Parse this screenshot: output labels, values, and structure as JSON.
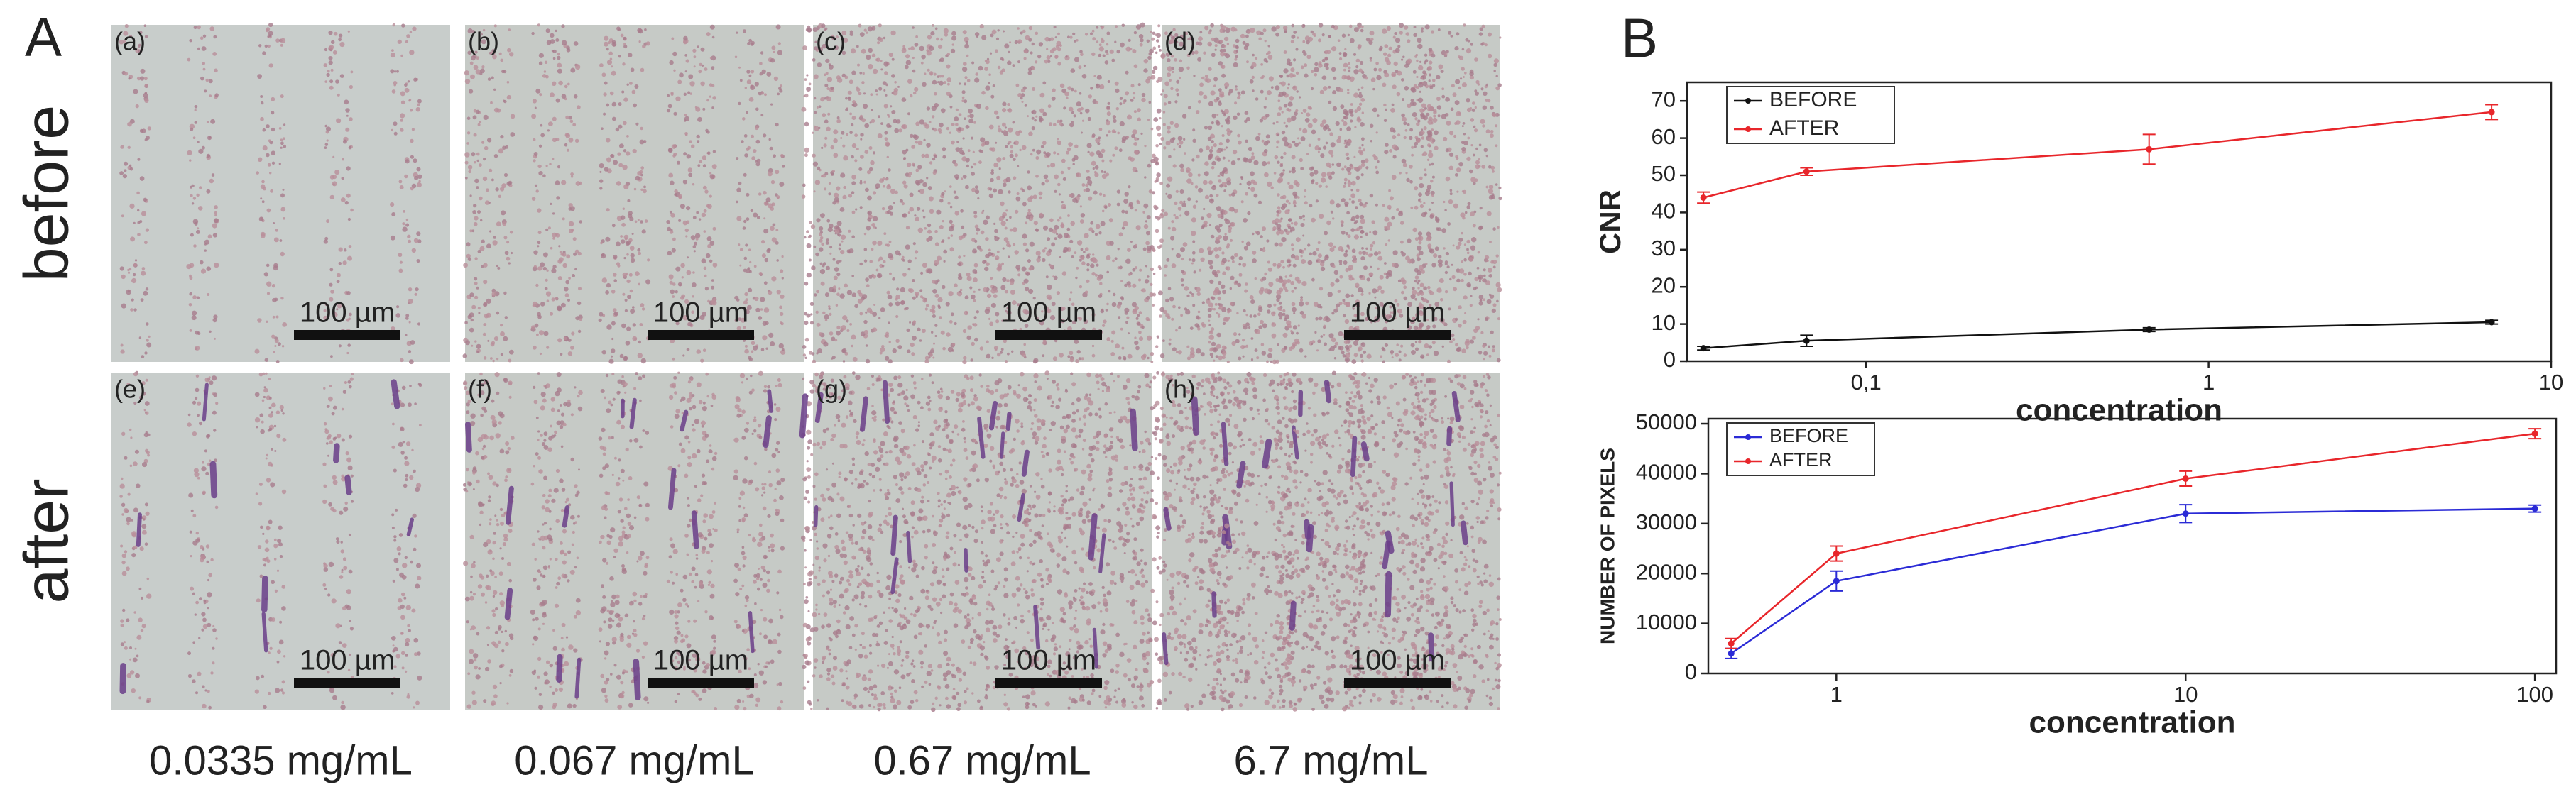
{
  "panel_a": {
    "label": "A",
    "rows": [
      "before",
      "after"
    ],
    "images": [
      {
        "label": "(a)",
        "scale_bar": "100 µm"
      },
      {
        "label": "(b)",
        "scale_bar": "100 µm"
      },
      {
        "label": "(c)",
        "scale_bar": "100 µm"
      },
      {
        "label": "(d)",
        "scale_bar": "100 µm"
      },
      {
        "label": "(e)",
        "scale_bar": "100 µm"
      },
      {
        "label": "(f)",
        "scale_bar": "100 µm"
      },
      {
        "label": "(g)",
        "scale_bar": "100 µm"
      },
      {
        "label": "(h)",
        "scale_bar": "100 µm"
      }
    ],
    "concentrations": [
      "0.0335 mg/mL",
      "0.067 mg/mL",
      "0.67 mg/mL",
      "6.7 mg/mL"
    ]
  },
  "panel_b": {
    "label": "B"
  },
  "chart_data": [
    {
      "type": "line",
      "xlabel": "concentration",
      "ylabel": "CNR",
      "xscale": "log",
      "x": [
        0.0335,
        0.067,
        0.67,
        6.7
      ],
      "xlim": [
        0.03,
        10
      ],
      "xticks": [
        {
          "value": 0.1,
          "label": "0,1"
        },
        1,
        10
      ],
      "ylim": [
        0,
        75
      ],
      "yticks": [
        0,
        10,
        20,
        30,
        40,
        50,
        60,
        70
      ],
      "legend": "upper left",
      "series": [
        {
          "name": "BEFORE",
          "color": "#111111",
          "values": [
            3.5,
            5.5,
            8.5,
            10.5
          ],
          "errors": [
            0.5,
            1.5,
            0.5,
            0.5
          ]
        },
        {
          "name": "AFTER",
          "color": "#e8262b",
          "values": [
            44,
            51,
            57,
            67
          ],
          "errors": [
            1.5,
            1,
            4,
            2
          ]
        }
      ]
    },
    {
      "type": "line",
      "xlabel": "concentration",
      "ylabel": "NUMBER OF PIXELS",
      "xscale": "log",
      "x": [
        0.5,
        1,
        10,
        100
      ],
      "xlim": [
        0.43,
        115
      ],
      "xticks": [
        1,
        10,
        100
      ],
      "ylim": [
        0,
        51000
      ],
      "yticks": [
        0,
        10000,
        20000,
        30000,
        40000,
        50000
      ],
      "legend": "upper left",
      "series": [
        {
          "name": "BEFORE",
          "color": "#2b2bd6",
          "values": [
            4000,
            18500,
            32000,
            33000
          ],
          "errors": [
            1000,
            2000,
            1800,
            700
          ]
        },
        {
          "name": "AFTER",
          "color": "#e8262b",
          "values": [
            6000,
            24000,
            39000,
            48000
          ],
          "errors": [
            1000,
            1500,
            1500,
            1000
          ]
        }
      ]
    }
  ]
}
